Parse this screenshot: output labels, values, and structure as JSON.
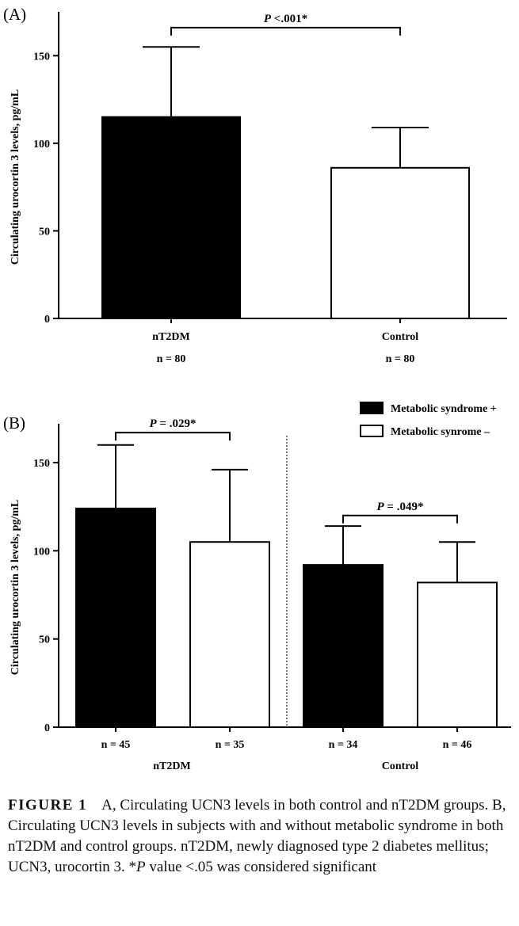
{
  "chart_data": [
    {
      "type": "bar",
      "panel_label": "(A)",
      "categories": [
        "nT2DM",
        "Control"
      ],
      "n_labels": [
        "n = 80",
        "n = 80"
      ],
      "values": [
        115,
        86
      ],
      "error_upper": [
        155,
        109
      ],
      "fills": [
        "#000000",
        "#ffffff"
      ],
      "ylabel": "Circulating urocortin 3 levels, pg/mL",
      "ylim": [
        0,
        175
      ],
      "yticks": [
        0,
        50,
        100,
        150
      ],
      "grid": false,
      "annotations": [
        {
          "text_italic": "P",
          "text_rest": " <.001*",
          "between": [
            0,
            1
          ],
          "level": 166
        }
      ]
    },
    {
      "type": "bar",
      "panel_label": "(B)",
      "groups": [
        "nT2DM",
        "Control"
      ],
      "categories": [
        "n = 45",
        "n = 35",
        "n = 34",
        "n = 46"
      ],
      "group_of_bar": [
        0,
        0,
        1,
        1
      ],
      "ylabel": "Circulating urocortin 3 levels, pg/mL",
      "ylim": [
        0,
        172
      ],
      "yticks": [
        0,
        50,
        100,
        150
      ],
      "grid": false,
      "legend_position": "top-right",
      "series": [
        {
          "name": "Metabolic syndrome +",
          "color": "#000000",
          "bars": [
            0,
            2
          ]
        },
        {
          "name": "Metabolic synrome –",
          "color": "#ffffff",
          "bars": [
            1,
            3
          ]
        }
      ],
      "values": [
        124,
        105,
        92,
        82
      ],
      "error_upper": [
        160,
        146,
        114,
        105
      ],
      "annotations": [
        {
          "text_italic": "P",
          "text_rest": " = .029*",
          "between": [
            0,
            1
          ],
          "level": 167
        },
        {
          "text_italic": "P",
          "text_rest": " = .049*",
          "between": [
            2,
            3
          ],
          "level": 120
        }
      ]
    }
  ],
  "caption": {
    "label": "FIGURE 1",
    "text_before_p": "A, Circulating UCN3 levels in both control and nT2DM groups. B, Circulating UCN3 levels in subjects with and without metabolic syndrome in both nT2DM and control groups. nT2DM, newly diagnosed type 2 diabetes mellitus; UCN3, urocortin 3. *",
    "p_italic": "P",
    "text_after_p": " value <.05 was considered significant"
  }
}
